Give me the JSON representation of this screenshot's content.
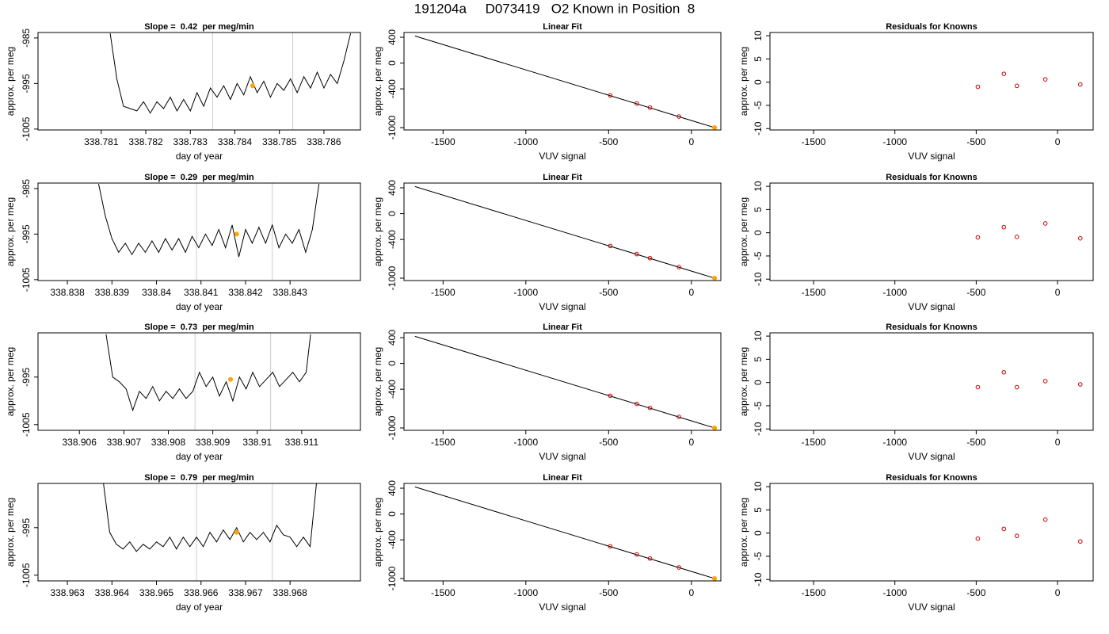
{
  "title": "191204a     D073419   O2 Known in Position  8",
  "chart_data": [
    {
      "type": "line",
      "title": "Slope =  0.42  per meg/min",
      "xlabel": "day of year",
      "ylabel": "approx. per meg",
      "x": [
        338.7812,
        338.78135,
        338.7815,
        338.78165,
        338.7818,
        338.78195,
        338.7821,
        338.78225,
        338.7824,
        338.78255,
        338.7827,
        338.78285,
        338.783,
        338.78315,
        338.7833,
        338.78345,
        338.7836,
        338.78375,
        338.7839,
        338.78405,
        338.7842,
        338.78435,
        338.7845,
        338.78465,
        338.7848,
        338.78495,
        338.7851,
        338.78525,
        338.7854,
        338.78555,
        338.7857,
        338.78585,
        338.786,
        338.78615,
        338.7863,
        338.78645,
        338.7866
      ],
      "values": [
        -984,
        -994,
        -1000,
        -1000.5,
        -1001,
        -999,
        -1001.5,
        -999,
        -1000.5,
        -998,
        -1001,
        -998.5,
        -1001,
        -997,
        -1000,
        -996,
        -998,
        -995.5,
        -998.5,
        -995,
        -997.5,
        -993.5,
        -997,
        -994.5,
        -998,
        -995,
        -996.5,
        -994,
        -997,
        -993.5,
        -996,
        -992.5,
        -996,
        -993,
        -995,
        -990,
        -984
      ],
      "color": "#000000",
      "xlim": [
        338.77958,
        338.78682
      ],
      "ylim": [
        -1005.2,
        -983.8
      ],
      "xticks": [
        338.781,
        338.782,
        338.783,
        338.784,
        338.785,
        338.786
      ],
      "yticks": [
        -1005,
        -995,
        -985
      ],
      "vlines": [
        338.7835,
        338.7853
      ],
      "vline_color": "#cccccc",
      "highlight": {
        "x": 338.7844,
        "y": -995.5,
        "color": "#ffa500"
      }
    },
    {
      "type": "scatter",
      "title": "Linear Fit",
      "xlabel": "VUV signal",
      "ylabel": "approx. per meg",
      "x": [
        -490,
        -330,
        -250,
        -75,
        140
      ],
      "values": [
        -501,
        -627,
        -690,
        -829,
        -1000
      ],
      "color": "#cc0000",
      "fit_line": {
        "x": [
          -1670,
          140
        ],
        "values": [
          420,
          -1000
        ],
        "color": "#000000"
      },
      "highlight": {
        "x": 140,
        "y": -1000,
        "color": "#ffa500"
      },
      "xlim": [
        -1736,
        178
      ],
      "ylim": [
        -1037,
        474
      ],
      "xticks": [
        -1500,
        -1000,
        -500,
        0
      ],
      "yticks": [
        -1000,
        -400,
        0,
        400
      ]
    },
    {
      "type": "scatter",
      "title": "Residuals for Knowns",
      "xlabel": "VUV signal",
      "ylabel": "approx. per meg",
      "x": [
        -490,
        -330,
        -250,
        -75,
        140
      ],
      "values": [
        -1,
        1.8,
        -0.8,
        0.6,
        -0.5
      ],
      "color": "#cc0000",
      "xlim": [
        -1768,
        219
      ],
      "ylim": [
        -10.3,
        10.7
      ],
      "xticks": [
        -1500,
        -1000,
        -500,
        0
      ],
      "yticks": [
        -10,
        -5,
        0,
        5,
        10
      ]
    },
    {
      "type": "line",
      "title": "Slope =  0.29  per meg/min",
      "xlabel": "day of year",
      "ylabel": "approx. per meg",
      "x": [
        338.8387,
        338.83885,
        338.839,
        338.83915,
        338.8393,
        338.83945,
        338.8396,
        338.83975,
        338.8399,
        338.84005,
        338.8402,
        338.84035,
        338.8405,
        338.84065,
        338.8408,
        338.84095,
        338.8411,
        338.84125,
        338.8414,
        338.84155,
        338.8417,
        338.84185,
        338.842,
        338.84215,
        338.8423,
        338.84245,
        338.8426,
        338.84275,
        338.8429,
        338.84305,
        338.8432,
        338.84335,
        338.8435,
        338.84365
      ],
      "values": [
        -984,
        -991,
        -996,
        -999,
        -997,
        -999.5,
        -997,
        -999,
        -996.5,
        -999,
        -996,
        -998.5,
        -996,
        -999,
        -995.5,
        -998,
        -995,
        -997.5,
        -994,
        -998,
        -993,
        -1000,
        -994,
        -997,
        -993.5,
        -997,
        -993,
        -998,
        -995,
        -997,
        -994,
        -999,
        -994,
        -984
      ],
      "color": "#000000",
      "xlim": [
        338.83734,
        338.84458
      ],
      "ylim": [
        -1005.2,
        -983.8
      ],
      "xticks": [
        338.838,
        338.839,
        338.84,
        338.841,
        338.842,
        338.843
      ],
      "yticks": [
        -1005,
        -995,
        -985
      ],
      "vlines": [
        338.8409,
        338.8426
      ],
      "vline_color": "#cccccc",
      "highlight": {
        "x": 338.8418,
        "y": -995,
        "color": "#ffa500"
      }
    },
    {
      "type": "scatter",
      "title": "Linear Fit",
      "xlabel": "VUV signal",
      "ylabel": "approx. per meg",
      "x": [
        -490,
        -330,
        -250,
        -75,
        140
      ],
      "values": [
        -501,
        -627,
        -690,
        -829,
        -1000
      ],
      "color": "#cc0000",
      "fit_line": {
        "x": [
          -1670,
          140
        ],
        "values": [
          420,
          -1000
        ],
        "color": "#000000"
      },
      "highlight": {
        "x": 140,
        "y": -1000,
        "color": "#ffa500"
      },
      "xlim": [
        -1736,
        178
      ],
      "ylim": [
        -1037,
        474
      ],
      "xticks": [
        -1500,
        -1000,
        -500,
        0
      ],
      "yticks": [
        -1000,
        -400,
        0,
        400
      ]
    },
    {
      "type": "scatter",
      "title": "Residuals for Knowns",
      "xlabel": "VUV signal",
      "ylabel": "approx. per meg",
      "x": [
        -490,
        -330,
        -250,
        -75,
        140
      ],
      "values": [
        -1,
        1.2,
        -0.9,
        2,
        -1.2
      ],
      "color": "#cc0000",
      "xlim": [
        -1768,
        219
      ],
      "ylim": [
        -10.3,
        10.7
      ],
      "xticks": [
        -1500,
        -1000,
        -500,
        0
      ],
      "yticks": [
        -10,
        -5,
        0,
        5,
        10
      ]
    },
    {
      "type": "line",
      "title": "Slope =  0.73  per meg/min",
      "xlabel": "day of year",
      "ylabel": "approx. per meg",
      "x": [
        338.9066,
        338.90675,
        338.9069,
        338.90705,
        338.9072,
        338.90735,
        338.9075,
        338.90765,
        338.9078,
        338.90795,
        338.9081,
        338.90825,
        338.9084,
        338.90855,
        338.9087,
        338.90885,
        338.909,
        338.90915,
        338.9093,
        338.90945,
        338.9096,
        338.90975,
        338.9099,
        338.91005,
        338.9102,
        338.91035,
        338.9105,
        338.9108,
        338.91095,
        338.9111,
        338.9112
      ],
      "values": [
        -986,
        -995,
        -996,
        -997.5,
        -1002,
        -998,
        -999.5,
        -997,
        -1000,
        -998,
        -999.5,
        -997.5,
        -999.5,
        -998,
        -994,
        -997,
        -995,
        -999,
        -996,
        -1000,
        -995,
        -997.5,
        -994,
        -997,
        -995.5,
        -994,
        -997,
        -994,
        -996,
        -994,
        -986
      ],
      "color": "#000000",
      "xlim": [
        338.90507,
        338.91232
      ],
      "ylim": [
        -1006.2,
        -985.7
      ],
      "xticks": [
        338.906,
        338.907,
        338.908,
        338.909,
        338.91,
        338.911
      ],
      "yticks": [
        -1005,
        -995
      ],
      "vlines": [
        338.9086,
        338.9103
      ],
      "vline_color": "#cccccc",
      "highlight": {
        "x": 338.9094,
        "y": -995.5,
        "color": "#ffa500"
      }
    },
    {
      "type": "scatter",
      "title": "Linear Fit",
      "xlabel": "VUV signal",
      "ylabel": "approx. per meg",
      "x": [
        -490,
        -330,
        -250,
        -75,
        140
      ],
      "values": [
        -501,
        -627,
        -690,
        -829,
        -1000
      ],
      "color": "#cc0000",
      "fit_line": {
        "x": [
          -1670,
          140
        ],
        "values": [
          420,
          -1000
        ],
        "color": "#000000"
      },
      "highlight": {
        "x": 140,
        "y": -1000,
        "color": "#ffa500"
      },
      "xlim": [
        -1736,
        178
      ],
      "ylim": [
        -1037,
        474
      ],
      "xticks": [
        -1500,
        -1000,
        -500,
        0
      ],
      "yticks": [
        -1000,
        -400,
        0,
        400
      ]
    },
    {
      "type": "scatter",
      "title": "Residuals for Knowns",
      "xlabel": "VUV signal",
      "ylabel": "approx. per meg",
      "x": [
        -490,
        -330,
        -250,
        -75,
        140
      ],
      "values": [
        -1,
        2.2,
        -1,
        0.3,
        -0.4
      ],
      "color": "#cc0000",
      "xlim": [
        -1768,
        219
      ],
      "ylim": [
        -10.3,
        10.7
      ],
      "xticks": [
        -1500,
        -1000,
        -500,
        0
      ],
      "yticks": [
        -10,
        -5,
        0,
        5,
        10
      ]
    },
    {
      "type": "line",
      "title": "Slope =  0.79  per meg/min",
      "xlabel": "day of year",
      "ylabel": "approx. per meg",
      "x": [
        338.9638,
        338.96395,
        338.9641,
        338.96425,
        338.9644,
        338.96455,
        338.9647,
        338.96485,
        338.965,
        338.96515,
        338.9653,
        338.96545,
        338.9656,
        338.96575,
        338.9659,
        338.96605,
        338.9662,
        338.96635,
        338.9665,
        338.96665,
        338.9668,
        338.96695,
        338.9671,
        338.96725,
        338.9674,
        338.96755,
        338.9677,
        338.96785,
        338.968,
        338.96815,
        338.9683,
        338.96845,
        338.9686
      ],
      "values": [
        -985,
        -996,
        -998.5,
        -999.5,
        -998,
        -1000,
        -998.5,
        -999.5,
        -998,
        -999,
        -997,
        -999.5,
        -997,
        -999,
        -997,
        -999,
        -996,
        -998,
        -995.5,
        -997.5,
        -995,
        -998,
        -996,
        -997.5,
        -996,
        -998,
        -994.5,
        -996.5,
        -997,
        -999,
        -997,
        -999,
        -985
      ],
      "color": "#000000",
      "xlim": [
        338.96234,
        338.96958
      ],
      "ylim": [
        -1006.2,
        -985.7
      ],
      "xticks": [
        338.963,
        338.964,
        338.965,
        338.966,
        338.967,
        338.968
      ],
      "yticks": [
        -1005,
        -995
      ],
      "vlines": [
        338.9659,
        338.9676
      ],
      "vline_color": "#cccccc",
      "highlight": {
        "x": 338.9668,
        "y": -996,
        "color": "#ffa500"
      }
    },
    {
      "type": "scatter",
      "title": "Linear Fit",
      "xlabel": "VUV signal",
      "ylabel": "approx. per meg",
      "x": [
        -490,
        -330,
        -250,
        -75,
        140
      ],
      "values": [
        -501,
        -627,
        -690,
        -829,
        -1000
      ],
      "color": "#cc0000",
      "fit_line": {
        "x": [
          -1670,
          140
        ],
        "values": [
          420,
          -1000
        ],
        "color": "#000000"
      },
      "highlight": {
        "x": 140,
        "y": -1000,
        "color": "#ffa500"
      },
      "xlim": [
        -1736,
        178
      ],
      "ylim": [
        -1037,
        474
      ],
      "xticks": [
        -1500,
        -1000,
        -500,
        0
      ],
      "yticks": [
        -1000,
        -400,
        0,
        400
      ]
    },
    {
      "type": "scatter",
      "title": "Residuals for Knowns",
      "xlabel": "VUV signal",
      "ylabel": "approx. per meg",
      "x": [
        -490,
        -330,
        -250,
        -75,
        140
      ],
      "values": [
        -1.2,
        0.9,
        -0.6,
        2.9,
        -1.8
      ],
      "color": "#cc0000",
      "xlim": [
        -1768,
        219
      ],
      "ylim": [
        -10.3,
        10.7
      ],
      "xticks": [
        -1500,
        -1000,
        -500,
        0
      ],
      "yticks": [
        -10,
        -5,
        0,
        5,
        10
      ]
    }
  ]
}
